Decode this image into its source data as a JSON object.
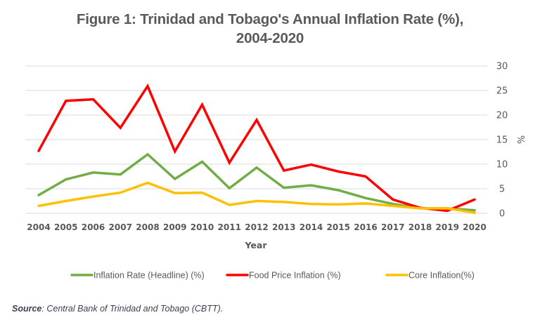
{
  "chart_data": {
    "type": "line",
    "title_lines": [
      "Figure 1: Trinidad and Tobago's Annual Inflation Rate (%),",
      "2004-2020"
    ],
    "xlabel": "Year",
    "ylabel": "%",
    "y_axis_side": "right",
    "ylim": [
      0,
      30
    ],
    "yticks": [
      0,
      5,
      10,
      15,
      20,
      25,
      30
    ],
    "grid": true,
    "legend_position": "bottom",
    "x": [
      "2004",
      "2005",
      "2006",
      "2007",
      "2008",
      "2009",
      "2010",
      "2011",
      "2012",
      "2013",
      "2014",
      "2015",
      "2016",
      "2017",
      "2018",
      "2019",
      "2020"
    ],
    "series": [
      {
        "name": "Inflation Rate (Headline) (%)",
        "color": "#70ad47",
        "values": [
          3.7,
          6.9,
          8.3,
          7.9,
          12.0,
          7.0,
          10.5,
          5.1,
          9.3,
          5.2,
          5.7,
          4.7,
          3.1,
          1.9,
          1.0,
          1.0,
          0.6
        ]
      },
      {
        "name": "Food Price Inflation (%)",
        "color": "#ff0000",
        "values": [
          12.7,
          22.9,
          23.2,
          17.4,
          25.9,
          12.6,
          22.1,
          10.3,
          19.0,
          8.7,
          9.9,
          8.5,
          7.5,
          2.8,
          1.1,
          0.5,
          2.8
        ]
      },
      {
        "name": "Core Inflation(%)",
        "color": "#ffc000",
        "values": [
          1.5,
          2.5,
          3.4,
          4.2,
          6.2,
          4.1,
          4.2,
          1.7,
          2.5,
          2.3,
          1.9,
          1.8,
          2.0,
          1.5,
          1.0,
          1.0,
          0.1
        ]
      }
    ]
  },
  "source": {
    "label": "Source",
    "text": ": Central Bank of Trinidad and Tobago (CBTT)."
  }
}
